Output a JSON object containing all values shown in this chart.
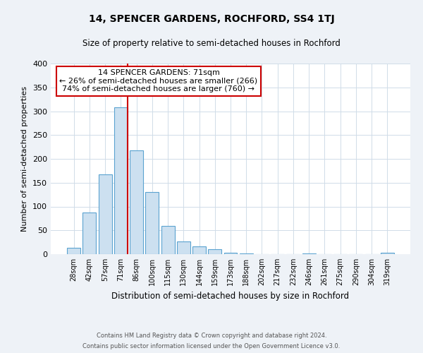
{
  "title": "14, SPENCER GARDENS, ROCHFORD, SS4 1TJ",
  "subtitle": "Size of property relative to semi-detached houses in Rochford",
  "xlabel": "Distribution of semi-detached houses by size in Rochford",
  "ylabel": "Number of semi-detached properties",
  "footer_line1": "Contains HM Land Registry data © Crown copyright and database right 2024.",
  "footer_line2": "Contains public sector information licensed under the Open Government Licence v3.0.",
  "bin_labels": [
    "28sqm",
    "42sqm",
    "57sqm",
    "71sqm",
    "86sqm",
    "100sqm",
    "115sqm",
    "130sqm",
    "144sqm",
    "159sqm",
    "173sqm",
    "188sqm",
    "202sqm",
    "217sqm",
    "232sqm",
    "246sqm",
    "261sqm",
    "275sqm",
    "290sqm",
    "304sqm",
    "319sqm"
  ],
  "bar_values": [
    13,
    88,
    168,
    308,
    218,
    130,
    60,
    26,
    17,
    10,
    3,
    1,
    0,
    0,
    0,
    2,
    0,
    0,
    0,
    0,
    3
  ],
  "bar_color": "#cce0f0",
  "bar_edge_color": "#5ba3d0",
  "vline_x_index": 3,
  "vline_color": "#cc0000",
  "annotation_title": "14 SPENCER GARDENS: 71sqm",
  "annotation_line1": "← 26% of semi-detached houses are smaller (266)",
  "annotation_line2": "74% of semi-detached houses are larger (760) →",
  "annotation_box_color": "#ffffff",
  "annotation_box_edge_color": "#cc0000",
  "ylim": [
    0,
    400
  ],
  "yticks": [
    0,
    50,
    100,
    150,
    200,
    250,
    300,
    350,
    400
  ],
  "bg_color": "#eef2f7",
  "plot_bg_color": "#ffffff",
  "grid_color": "#d0dce8"
}
